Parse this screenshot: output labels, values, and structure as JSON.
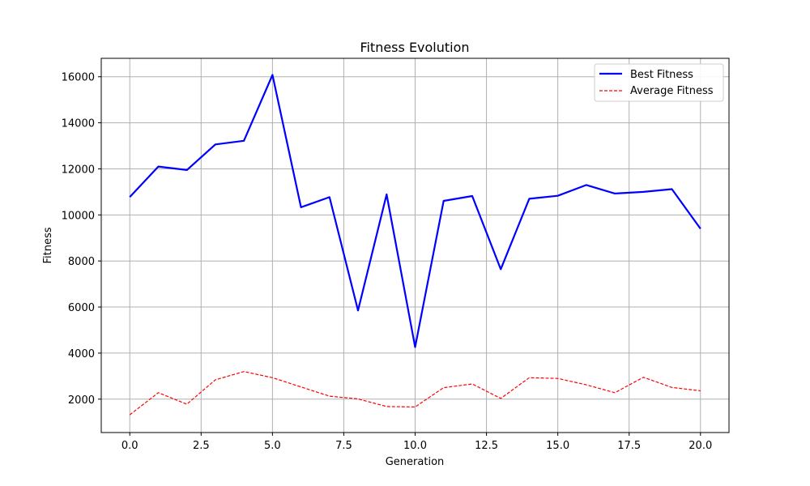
{
  "chart_data": {
    "type": "line",
    "title": "Fitness Evolution",
    "xlabel": "Generation",
    "ylabel": "Fitness",
    "xlim": [
      -1,
      21
    ],
    "ylim": [
      550,
      16800
    ],
    "x_ticks": [
      0,
      2.5,
      5,
      7.5,
      10,
      12.5,
      15,
      17.5,
      20
    ],
    "x_tick_labels": [
      "0.0",
      "2.5",
      "5.0",
      "7.5",
      "10.0",
      "12.5",
      "15.0",
      "17.5",
      "20.0"
    ],
    "y_ticks": [
      2000,
      4000,
      6000,
      8000,
      10000,
      12000,
      14000,
      16000
    ],
    "y_tick_labels": [
      "2000",
      "4000",
      "6000",
      "8000",
      "10000",
      "12000",
      "14000",
      "16000"
    ],
    "grid": true,
    "legend_position": "top-right",
    "x": [
      0,
      1,
      2,
      3,
      4,
      5,
      6,
      7,
      8,
      9,
      10,
      11,
      12,
      13,
      14,
      15,
      16,
      17,
      18,
      19,
      20
    ],
    "series": [
      {
        "name": "Best Fitness",
        "color": "#0000ff",
        "line_style": "solid",
        "values": [
          10780,
          12100,
          11950,
          13060,
          13220,
          16080,
          10330,
          10770,
          5850,
          10890,
          4260,
          10610,
          10820,
          7640,
          10700,
          10830,
          11300,
          10930,
          11000,
          11120,
          9400
        ]
      },
      {
        "name": "Average Fitness",
        "color": "#ff0000",
        "line_style": "dashed",
        "values": [
          1320,
          2280,
          1780,
          2840,
          3200,
          2930,
          2530,
          2130,
          2010,
          1680,
          1660,
          2500,
          2660,
          2030,
          2930,
          2900,
          2620,
          2280,
          2950,
          2510,
          2360
        ]
      }
    ]
  }
}
